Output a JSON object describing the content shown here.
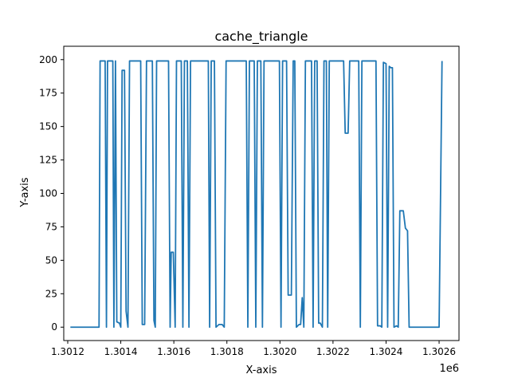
{
  "chart_data": {
    "type": "line",
    "title": "cache_triangle",
    "xlabel": "X-axis",
    "ylabel": "Y-axis",
    "x_offset_label": "1e6",
    "xlim": [
      1301185,
      1302675
    ],
    "ylim": [
      -10,
      210
    ],
    "x_ticks": [
      1301200,
      1301400,
      1301600,
      1301800,
      1302000,
      1302200,
      1302400,
      1302600
    ],
    "x_tick_labels": [
      "1.3012",
      "1.3014",
      "1.3016",
      "1.3018",
      "1.3020",
      "1.3022",
      "1.3024",
      "1.3026"
    ],
    "y_ticks": [
      0,
      25,
      50,
      75,
      100,
      125,
      150,
      175,
      200
    ],
    "y_tick_labels": [
      "0",
      "25",
      "50",
      "75",
      "100",
      "125",
      "150",
      "175",
      "200"
    ],
    "grid": false,
    "legend": "none",
    "series": [
      {
        "color": "#1f77b4",
        "points": [
          [
            1301210,
            0
          ],
          [
            1301318,
            0
          ],
          [
            1301322,
            199
          ],
          [
            1301341,
            199
          ],
          [
            1301346,
            0
          ],
          [
            1301350,
            199
          ],
          [
            1301370,
            199
          ],
          [
            1301374,
            0
          ],
          [
            1301380,
            199
          ],
          [
            1301385,
            4
          ],
          [
            1301395,
            3
          ],
          [
            1301400,
            0
          ],
          [
            1301405,
            192
          ],
          [
            1301414,
            192
          ],
          [
            1301420,
            12
          ],
          [
            1301427,
            0
          ],
          [
            1301433,
            199
          ],
          [
            1301475,
            199
          ],
          [
            1301481,
            2
          ],
          [
            1301490,
            2
          ],
          [
            1301497,
            199
          ],
          [
            1301519,
            199
          ],
          [
            1301525,
            5
          ],
          [
            1301530,
            0
          ],
          [
            1301535,
            199
          ],
          [
            1301580,
            199
          ],
          [
            1301586,
            0
          ],
          [
            1301590,
            56
          ],
          [
            1301598,
            56
          ],
          [
            1301605,
            0
          ],
          [
            1301610,
            199
          ],
          [
            1301628,
            199
          ],
          [
            1301634,
            0
          ],
          [
            1301640,
            199
          ],
          [
            1301651,
            199
          ],
          [
            1301657,
            0
          ],
          [
            1301663,
            199
          ],
          [
            1301730,
            199
          ],
          [
            1301735,
            0
          ],
          [
            1301741,
            199
          ],
          [
            1301753,
            199
          ],
          [
            1301759,
            0
          ],
          [
            1301770,
            2
          ],
          [
            1301782,
            2
          ],
          [
            1301790,
            0
          ],
          [
            1301797,
            199
          ],
          [
            1301873,
            199
          ],
          [
            1301879,
            0
          ],
          [
            1301885,
            199
          ],
          [
            1301903,
            199
          ],
          [
            1301909,
            0
          ],
          [
            1301915,
            199
          ],
          [
            1301928,
            199
          ],
          [
            1301934,
            0
          ],
          [
            1301940,
            199
          ],
          [
            1301998,
            199
          ],
          [
            1302004,
            0
          ],
          [
            1302010,
            199
          ],
          [
            1302025,
            199
          ],
          [
            1302031,
            24
          ],
          [
            1302043,
            24
          ],
          [
            1302050,
            199
          ],
          [
            1302056,
            199
          ],
          [
            1302062,
            0
          ],
          [
            1302072,
            2
          ],
          [
            1302078,
            2
          ],
          [
            1302084,
            22
          ],
          [
            1302090,
            0
          ],
          [
            1302096,
            199
          ],
          [
            1302119,
            199
          ],
          [
            1302125,
            0
          ],
          [
            1302131,
            199
          ],
          [
            1302140,
            199
          ],
          [
            1302146,
            3
          ],
          [
            1302152,
            3
          ],
          [
            1302160,
            0
          ],
          [
            1302166,
            199
          ],
          [
            1302175,
            199
          ],
          [
            1302180,
            0
          ],
          [
            1302186,
            199
          ],
          [
            1302240,
            199
          ],
          [
            1302246,
            145
          ],
          [
            1302257,
            145
          ],
          [
            1302263,
            199
          ],
          [
            1302297,
            199
          ],
          [
            1302303,
            0
          ],
          [
            1302309,
            199
          ],
          [
            1302362,
            199
          ],
          [
            1302368,
            1
          ],
          [
            1302378,
            1
          ],
          [
            1302384,
            0
          ],
          [
            1302390,
            198
          ],
          [
            1302400,
            197
          ],
          [
            1302406,
            0
          ],
          [
            1302412,
            195
          ],
          [
            1302418,
            194
          ],
          [
            1302424,
            194
          ],
          [
            1302430,
            0
          ],
          [
            1302440,
            1
          ],
          [
            1302446,
            0
          ],
          [
            1302452,
            87
          ],
          [
            1302465,
            87
          ],
          [
            1302473,
            74
          ],
          [
            1302481,
            72
          ],
          [
            1302487,
            0
          ],
          [
            1302600,
            0
          ],
          [
            1302611,
            199
          ]
        ]
      }
    ]
  }
}
